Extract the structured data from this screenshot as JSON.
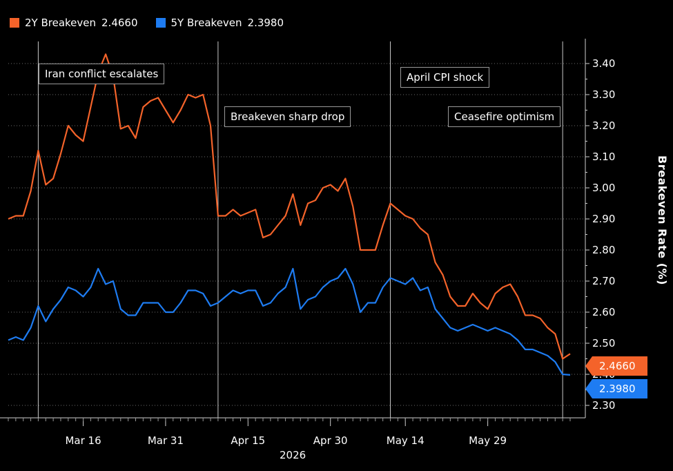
{
  "legend": [
    {
      "name": "2Y Breakeven",
      "value": "2.4660",
      "color": "#f4632a"
    },
    {
      "name": "5Y Breakeven",
      "value": "2.3980",
      "color": "#1e7cf2"
    }
  ],
  "chart_data": {
    "type": "line",
    "ylabel": "Breakeven Rate (%)",
    "xlabel": "2026",
    "ylim": [
      2.26,
      3.48
    ],
    "yticks": [
      "3.40",
      "3.30",
      "3.20",
      "3.10",
      "3.00",
      "2.90",
      "2.80",
      "2.70",
      "2.60",
      "2.50",
      "2.40",
      "2.30"
    ],
    "xticks": [
      "Mar 16",
      "Mar 31",
      "Apr 15",
      "Apr 30",
      "May 14",
      "May 29"
    ],
    "annotations": [
      {
        "text": "Iran conflict escalates"
      },
      {
        "text": "Breakeven sharp drop"
      },
      {
        "text": "April CPI shock"
      },
      {
        "text": "Ceasefire optimism"
      }
    ],
    "last_values": [
      {
        "series": "2Y Breakeven",
        "value": "2.4660"
      },
      {
        "series": "5Y Breakeven",
        "value": "2.3980"
      }
    ],
    "series": [
      {
        "name": "2Y Breakeven",
        "color": "#f4632a",
        "values": [
          2.9,
          2.91,
          2.91,
          2.99,
          3.12,
          3.01,
          3.03,
          3.11,
          3.2,
          3.17,
          3.15,
          3.26,
          3.37,
          3.43,
          3.36,
          3.19,
          3.2,
          3.16,
          3.26,
          3.28,
          3.29,
          3.25,
          3.21,
          3.25,
          3.3,
          3.29,
          3.3,
          3.2,
          2.91,
          2.91,
          2.93,
          2.91,
          2.92,
          2.93,
          2.84,
          2.85,
          2.88,
          2.91,
          2.98,
          2.88,
          2.95,
          2.96,
          3.0,
          3.01,
          2.99,
          3.03,
          2.94,
          2.8,
          2.8,
          2.8,
          2.88,
          2.95,
          2.93,
          2.91,
          2.9,
          2.87,
          2.85,
          2.76,
          2.72,
          2.65,
          2.62,
          2.62,
          2.66,
          2.63,
          2.61,
          2.66,
          2.68,
          2.69,
          2.65,
          2.59,
          2.59,
          2.58,
          2.55,
          2.53,
          2.45,
          2.466
        ]
      },
      {
        "name": "5Y Breakeven",
        "color": "#1e7cf2",
        "values": [
          2.51,
          2.52,
          2.51,
          2.55,
          2.62,
          2.57,
          2.61,
          2.64,
          2.68,
          2.67,
          2.65,
          2.68,
          2.74,
          2.69,
          2.7,
          2.61,
          2.59,
          2.59,
          2.63,
          2.63,
          2.63,
          2.6,
          2.6,
          2.63,
          2.67,
          2.67,
          2.66,
          2.62,
          2.63,
          2.65,
          2.67,
          2.66,
          2.67,
          2.67,
          2.62,
          2.63,
          2.66,
          2.68,
          2.74,
          2.61,
          2.64,
          2.65,
          2.68,
          2.7,
          2.71,
          2.74,
          2.69,
          2.6,
          2.63,
          2.63,
          2.68,
          2.71,
          2.7,
          2.69,
          2.71,
          2.67,
          2.68,
          2.61,
          2.58,
          2.55,
          2.54,
          2.55,
          2.56,
          2.55,
          2.54,
          2.55,
          2.54,
          2.53,
          2.51,
          2.48,
          2.48,
          2.47,
          2.46,
          2.44,
          2.4,
          2.398
        ]
      }
    ]
  }
}
